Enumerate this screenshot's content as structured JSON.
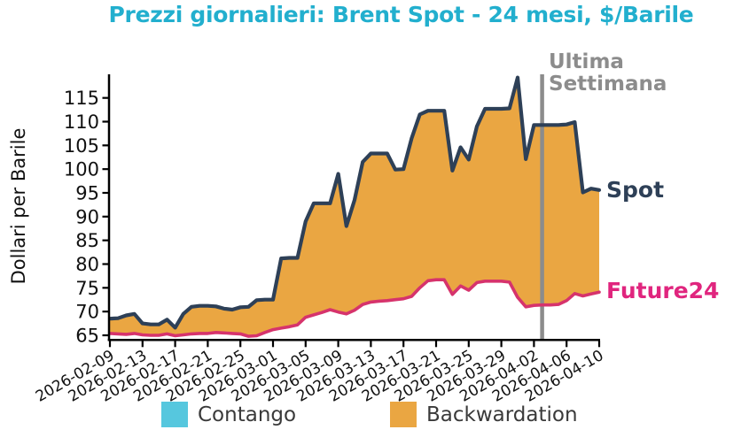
{
  "title": "Prezzi giornalieri: Brent Spot - 24 mesi, $/Barile",
  "y_axis_label": "Dollari per Barile",
  "annotations": {
    "vline_line1": "Ultima",
    "vline_line2": "Settimana",
    "spot": "Spot",
    "future": "Future24"
  },
  "legend": {
    "items": [
      {
        "label": "Contango",
        "color": "#56C7DE"
      },
      {
        "label": "Backwardation",
        "color": "#EAA642"
      }
    ]
  },
  "colors": {
    "title": "#22AFCE",
    "spot_line": "#2E4057",
    "future_line": "#D6336C",
    "spot_label": "#2E4057",
    "future_label": "#E0257E",
    "backwardation_fill": "#EAA642",
    "contango_fill": "#56C7DE",
    "vline": "#8C8C8C",
    "annotation_text": "#8C8C8C",
    "axis_text": "#111111",
    "axis_line": "#000000"
  },
  "chart_data": {
    "type": "area",
    "title": "Prezzi giornalieri: Brent Spot - 24 mesi, $/Barile",
    "ylabel": "Dollari per Barile",
    "x_start": "2026-02-09",
    "x_end": "2026-04-10",
    "frequency": "daily",
    "x_tick_labels": [
      "2026-02-09",
      "2026-02-13",
      "2026-02-17",
      "2026-02-21",
      "2026-02-25",
      "2026-03-01",
      "2026-03-05",
      "2026-03-09",
      "2026-03-13",
      "2026-03-17",
      "2026-03-21",
      "2026-03-25",
      "2026-03-29",
      "2026-04-02",
      "2026-04-06",
      "2026-04-10"
    ],
    "x_tick_every_days": 4,
    "y_ticks": [
      65,
      70,
      75,
      80,
      85,
      90,
      95,
      100,
      105,
      110,
      115
    ],
    "ylim": [
      64.2,
      120.3
    ],
    "grid": false,
    "legend_position": "bottom",
    "vline": {
      "date": "2026-04-03",
      "day_index": 53,
      "label": "Ultima Settimana"
    },
    "fill_between": "Backwardation (orange) where Spot > Future24; Contango (cyan) where Future24 > Spot (not present)",
    "series": [
      {
        "name": "Spot",
        "values": [
          68.5,
          68.6,
          69.2,
          69.5,
          67.5,
          67.3,
          67.3,
          68.3,
          66.6,
          69.5,
          71.0,
          71.2,
          71.2,
          71.1,
          70.6,
          70.4,
          70.9,
          71.0,
          72.4,
          72.5,
          72.5,
          81.2,
          81.3,
          81.3,
          89.0,
          92.8,
          92.8,
          92.8,
          99.0,
          88.0,
          93.5,
          101.5,
          103.3,
          103.3,
          103.3,
          99.9,
          100.0,
          106.5,
          111.5,
          112.3,
          112.3,
          112.3,
          99.7,
          104.6,
          102.0,
          109.0,
          112.7,
          112.7,
          112.7,
          112.8,
          119.3,
          102.1,
          109.3,
          109.3,
          109.3,
          109.3,
          109.4,
          109.9,
          95.1,
          95.9,
          95.6
        ]
      },
      {
        "name": "Future24",
        "values": [
          65.4,
          65.3,
          65.2,
          65.4,
          65.1,
          65.0,
          65.0,
          65.3,
          64.9,
          65.1,
          65.3,
          65.4,
          65.4,
          65.6,
          65.5,
          65.4,
          65.3,
          64.8,
          64.9,
          65.6,
          66.2,
          66.5,
          66.8,
          67.2,
          68.8,
          69.3,
          69.8,
          70.4,
          69.9,
          69.5,
          70.3,
          71.5,
          72.0,
          72.2,
          72.3,
          72.5,
          72.7,
          73.2,
          75.0,
          76.5,
          76.7,
          76.7,
          73.6,
          75.4,
          74.5,
          76.1,
          76.4,
          76.4,
          76.4,
          76.2,
          73.0,
          71.0,
          71.3,
          71.4,
          71.4,
          71.5,
          72.3,
          73.8,
          73.3,
          73.7,
          74.1
        ]
      }
    ]
  }
}
